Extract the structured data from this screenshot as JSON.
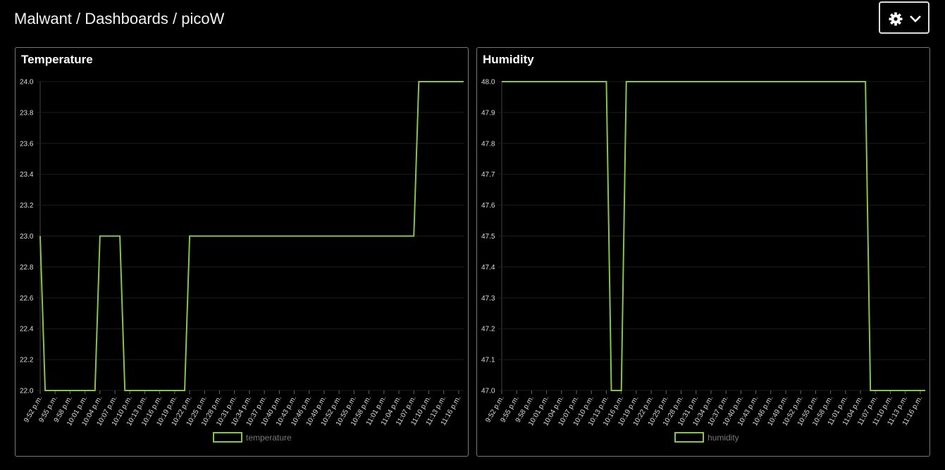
{
  "header": {
    "title": "Malwant / Dashboards / picoW"
  },
  "chart_data": [
    {
      "type": "line",
      "title": "Temperature",
      "categories": [
        "9:52 p.m.",
        null,
        null,
        "9:55 p.m.",
        null,
        null,
        "9:58 p.m.",
        null,
        null,
        "10:01 p.m.",
        null,
        null,
        "10:04 p.m.",
        null,
        null,
        "10:07 p.m.",
        null,
        null,
        "10:10 p.m.",
        null,
        null,
        "10:13 p.m.",
        null,
        null,
        "10:16 p.m.",
        null,
        null,
        "10:19 p.m.",
        null,
        null,
        "10:22 p.m.",
        null,
        null,
        "10:25 p.m.",
        null,
        null,
        "10:28 p.m.",
        null,
        null,
        "10:31 p.m.",
        null,
        null,
        "10:34 p.m.",
        null,
        null,
        "10:37 p.m.",
        null,
        null,
        "10:40 p.m.",
        null,
        null,
        "10:43 p.m.",
        null,
        null,
        "10:46 p.m.",
        null,
        null,
        "10:49 p.m.",
        null,
        null,
        "10:52 p.m.",
        null,
        null,
        "10:55 p.m.",
        null,
        null,
        "10:58 p.m.",
        null,
        null,
        "11:01 p.m.",
        null,
        null,
        "11:04 p.m.",
        null,
        null,
        "11:07 p.m.",
        null,
        null,
        "11:10 p.m.",
        null,
        null,
        "11:13 p.m.",
        null,
        null,
        "11:16 p.m.",
        null
      ],
      "series": [
        {
          "name": "temperature",
          "color": "#8bc34a",
          "values": [
            23,
            22,
            22,
            22,
            22,
            22,
            22,
            22,
            22,
            22,
            22,
            22,
            23,
            23,
            23,
            23,
            23,
            22,
            22,
            22,
            22,
            22,
            22,
            22,
            22,
            22,
            22,
            22,
            22,
            22,
            23,
            23,
            23,
            23,
            23,
            23,
            23,
            23,
            23,
            23,
            23,
            23,
            23,
            23,
            23,
            23,
            23,
            23,
            23,
            23,
            23,
            23,
            23,
            23,
            23,
            23,
            23,
            23,
            23,
            23,
            23,
            23,
            23,
            23,
            23,
            23,
            23,
            23,
            23,
            23,
            23,
            23,
            23,
            23,
            23,
            23,
            24,
            24,
            24,
            24,
            24,
            24,
            24,
            24,
            24,
            24
          ]
        }
      ],
      "ylim": [
        22,
        24
      ],
      "yticks": [
        {
          "value": 22,
          "label": "22.0"
        },
        22.2,
        22.4,
        22.6,
        22.8,
        {
          "value": 23,
          "label": "23.0"
        },
        23.2,
        23.4,
        23.6,
        23.8,
        {
          "value": 24,
          "label": "24.0"
        }
      ],
      "legend": "bottom"
    },
    {
      "type": "line",
      "title": "Humidity",
      "categories": [
        "9:52 p.m.",
        null,
        null,
        "9:55 p.m.",
        null,
        null,
        "9:58 p.m.",
        null,
        null,
        "10:01 p.m.",
        null,
        null,
        "10:04 p.m.",
        null,
        null,
        "10:07 p.m.",
        null,
        null,
        "10:10 p.m.",
        null,
        null,
        "10:13 p.m.",
        null,
        null,
        "10:16 p.m.",
        null,
        null,
        "10:19 p.m.",
        null,
        null,
        "10:22 p.m.",
        null,
        null,
        "10:25 p.m.",
        null,
        null,
        "10:28 p.m.",
        null,
        null,
        "10:31 p.m.",
        null,
        null,
        "10:34 p.m.",
        null,
        null,
        "10:37 p.m.",
        null,
        null,
        "10:40 p.m.",
        null,
        null,
        "10:43 p.m.",
        null,
        null,
        "10:46 p.m.",
        null,
        null,
        "10:49 p.m.",
        null,
        null,
        "10:52 p.m.",
        null,
        null,
        "10:55 p.m.",
        null,
        null,
        "10:58 p.m.",
        null,
        null,
        "11:01 p.m.",
        null,
        null,
        "11:04 p.m.",
        null,
        null,
        "11:07 p.m.",
        null,
        null,
        "11:10 p.m.",
        null,
        null,
        "11:13 p.m.",
        null,
        null,
        "11:16 p.m.",
        null
      ],
      "series": [
        {
          "name": "humidity",
          "color": "#8bc34a",
          "values": [
            48,
            48,
            48,
            48,
            48,
            48,
            48,
            48,
            48,
            48,
            48,
            48,
            48,
            48,
            48,
            48,
            48,
            48,
            48,
            48,
            48,
            48,
            47,
            47,
            47,
            48,
            48,
            48,
            48,
            48,
            48,
            48,
            48,
            48,
            48,
            48,
            48,
            48,
            48,
            48,
            48,
            48,
            48,
            48,
            48,
            48,
            48,
            48,
            48,
            48,
            48,
            48,
            48,
            48,
            48,
            48,
            48,
            48,
            48,
            48,
            48,
            48,
            48,
            48,
            48,
            48,
            48,
            48,
            48,
            48,
            48,
            48,
            48,
            48,
            47,
            47,
            47,
            47,
            47,
            47,
            47,
            47,
            47,
            47,
            47,
            47
          ]
        }
      ],
      "ylim": [
        47,
        48
      ],
      "yticks": [
        {
          "value": 47,
          "label": "47.0"
        },
        47.1,
        47.2,
        47.3,
        47.4,
        47.5,
        47.6,
        47.7,
        47.8,
        47.9,
        {
          "value": 48,
          "label": "48.0"
        }
      ],
      "legend": "bottom"
    }
  ]
}
